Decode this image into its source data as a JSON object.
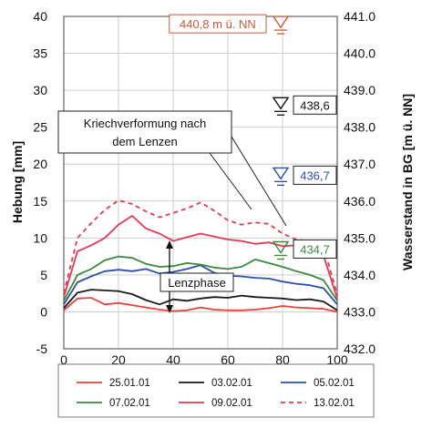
{
  "chart_data": {
    "type": "line",
    "xlabel": "",
    "ylabel": "Hebung [mm]",
    "y2label": "Wasserstand in BG [m ü. NN]",
    "xlim": [
      0,
      100
    ],
    "ylim": [
      -5,
      40
    ],
    "y2lim": [
      432.0,
      441.0
    ],
    "x_ticks": [
      "0",
      "20",
      "40",
      "60",
      "80",
      "100"
    ],
    "y_ticks": [
      "-5",
      "0",
      "5",
      "10",
      "15",
      "20",
      "25",
      "30",
      "35",
      "40"
    ],
    "y2_ticks": [
      "432.0",
      "433.0",
      "434.0",
      "435.0",
      "436.0",
      "437.0",
      "438.0",
      "439.0",
      "440.0",
      "441.0"
    ],
    "grid": true,
    "legend_position": "bottom",
    "x": [
      0,
      5,
      10,
      15,
      20,
      25,
      30,
      35,
      40,
      45,
      50,
      55,
      60,
      65,
      70,
      75,
      80,
      85,
      90,
      95,
      100
    ],
    "series": [
      {
        "name": "25.01.01",
        "color": "#e8433a",
        "dash": false,
        "values": [
          0.2,
          1.8,
          1.9,
          1.0,
          1.2,
          0.9,
          0.6,
          0.3,
          0.1,
          0.2,
          0.6,
          0.3,
          0.2,
          0.2,
          0.3,
          0.5,
          0.8,
          0.6,
          0.5,
          0.4,
          0.0
        ]
      },
      {
        "name": "03.02.01",
        "color": "#1a1a1a",
        "dash": false,
        "values": [
          0.5,
          2.6,
          3.0,
          2.9,
          2.8,
          2.4,
          1.6,
          1.0,
          1.7,
          1.5,
          1.8,
          2.0,
          1.9,
          2.2,
          2.0,
          1.9,
          1.8,
          1.6,
          1.7,
          1.4,
          0.2
        ]
      },
      {
        "name": "05.02.01",
        "color": "#2d4fa8",
        "dash": false,
        "values": [
          1.0,
          4.0,
          4.8,
          5.5,
          5.7,
          5.5,
          5.8,
          5.2,
          5.4,
          5.8,
          6.3,
          5.3,
          4.9,
          4.8,
          4.6,
          4.5,
          4.1,
          3.8,
          3.6,
          3.2,
          1.0
        ]
      },
      {
        "name": "07.02.01",
        "color": "#3a8a3e",
        "dash": false,
        "values": [
          1.5,
          5.0,
          5.8,
          7.0,
          7.5,
          7.3,
          6.5,
          6.1,
          6.2,
          6.6,
          6.4,
          6.0,
          5.8,
          6.1,
          7.1,
          6.6,
          6.1,
          5.5,
          5.0,
          4.3,
          1.5
        ]
      },
      {
        "name": "09.02.01",
        "color": "#e33a55",
        "dash": false,
        "values": [
          2.0,
          8.2,
          9.0,
          10.0,
          11.8,
          13.0,
          11.3,
          10.6,
          9.6,
          10.1,
          10.6,
          10.2,
          9.8,
          9.6,
          9.2,
          9.4,
          8.9,
          9.0,
          8.7,
          7.6,
          1.8
        ]
      },
      {
        "name": "13.02.01",
        "color": "#e33a55",
        "dash": true,
        "values": [
          2.5,
          10.0,
          12.0,
          13.8,
          15.1,
          14.6,
          13.6,
          12.8,
          13.4,
          14.0,
          14.8,
          13.7,
          12.4,
          11.8,
          12.1,
          11.9,
          10.6,
          9.8,
          9.6,
          8.9,
          2.3
        ]
      }
    ],
    "water_levels": [
      {
        "label": "440,8 m ü. NN",
        "level": 440.8,
        "color": "#c95a3c"
      },
      {
        "label": "438,6",
        "level": 438.6,
        "color": "#111111"
      },
      {
        "label": "436,7",
        "level": 436.7,
        "color": "#2d4fa8"
      },
      {
        "label": "434,7",
        "level": 434.7,
        "color": "#3a8a3e"
      }
    ],
    "annotations": [
      {
        "text_lines": [
          "Kriechverformung nach",
          "dem Lenzen"
        ]
      },
      {
        "text": "Lenzphase"
      }
    ]
  }
}
